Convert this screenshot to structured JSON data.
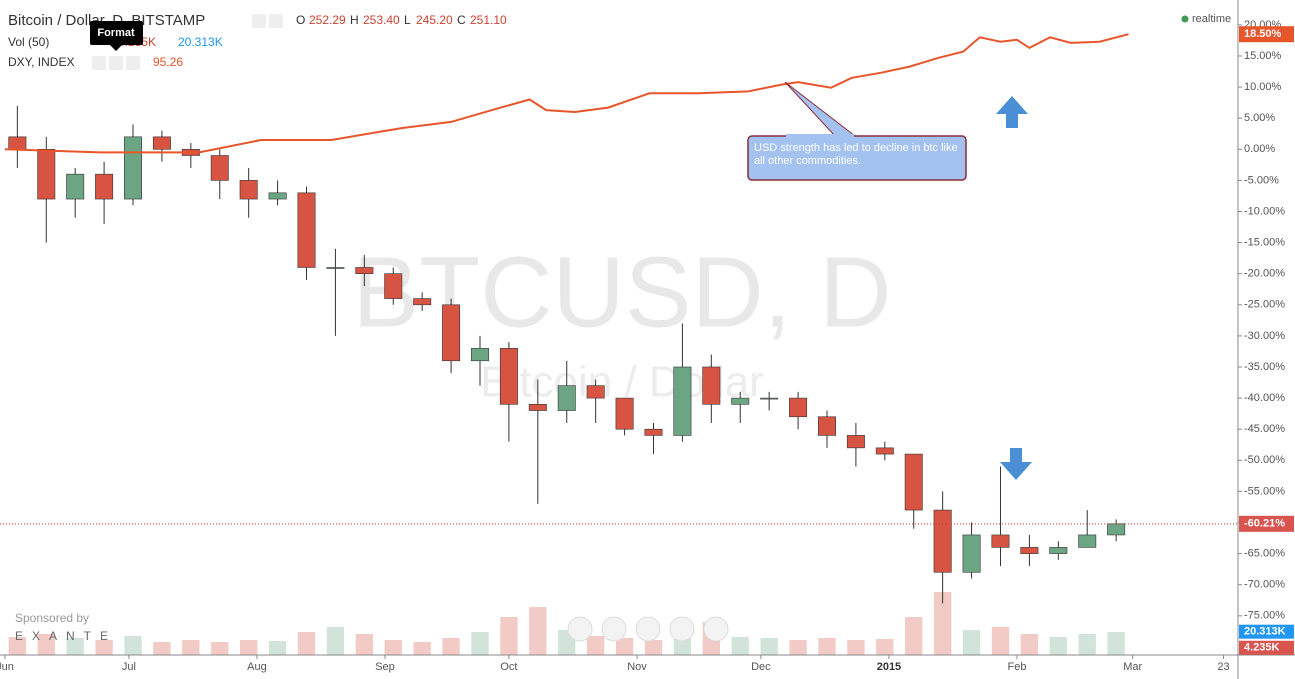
{
  "chart_data": {
    "type": "candlestick",
    "title": "Bitcoin / Dollar, D, BITSTAMP",
    "ohlc": {
      "o_label": "O",
      "o": "252.29",
      "h_label": "H",
      "h": "253.40",
      "l_label": "L",
      "l": "245.20",
      "c_label": "C",
      "c": "251.10"
    },
    "watermark": "BTCUSD, D",
    "watermark_subtitle": "Bitcoin / Dollar",
    "realtime": "realtime",
    "tooltip": "Format",
    "sponsor": "Sponsored by",
    "sponsor_name": "EXANTE",
    "annotation": "USD strength has led to decline in btc like all other commodities.",
    "up_color": "#6ba583",
    "down_color": "#d75442",
    "x": [
      3,
      10,
      17,
      24,
      31,
      38,
      45,
      52,
      59,
      66,
      73,
      80,
      87,
      94,
      101,
      108,
      115,
      122,
      129,
      136,
      143,
      150,
      157,
      164,
      171,
      178,
      185,
      192,
      199,
      206,
      213,
      220,
      227,
      234,
      241,
      248,
      255,
      262,
      269
    ],
    "open": [
      2,
      0,
      -8,
      -4,
      -8,
      2,
      0,
      -1,
      -5,
      -8,
      -7,
      -19,
      -19,
      -20,
      -24,
      -25,
      -34,
      -32,
      -41,
      -42,
      -38,
      -40,
      -45,
      -46,
      -35,
      -41,
      -40,
      -40,
      -43,
      -46,
      -48,
      -49,
      -58,
      -68,
      -62,
      -64,
      -65,
      -64,
      -62
    ],
    "high": [
      7,
      2,
      -3,
      -2,
      4,
      3,
      1,
      0,
      -3,
      -5,
      -6,
      -16,
      -17,
      -19,
      -23,
      -24,
      -30,
      -31,
      -37,
      -34,
      -37,
      -40,
      -44,
      -28,
      -33,
      -39,
      -39,
      -39,
      -42,
      -44,
      -47,
      -49,
      -55,
      -60,
      -51,
      -62,
      -63,
      -58,
      -59.5
    ],
    "low": [
      -3,
      -15,
      -11,
      -12,
      -9,
      -2,
      -3,
      -8,
      -11,
      -9,
      -21,
      -30,
      -22,
      -25,
      -26,
      -36,
      -38,
      -47,
      -57,
      -44,
      -44,
      -46,
      -49,
      -47,
      -44,
      -44,
      -42,
      -45,
      -48,
      -51,
      -50,
      -61,
      -73,
      -69,
      -67,
      -67,
      -66,
      -64,
      -63
    ],
    "close": [
      0,
      -8,
      -4,
      -8,
      2,
      0,
      -1,
      -5,
      -8,
      -7,
      -19,
      -19,
      -20,
      -24,
      -25,
      -34,
      -32,
      -41,
      -42,
      -38,
      -40,
      -45,
      -46,
      -35,
      -41,
      -40,
      -40,
      -43,
      -46,
      -48,
      -49,
      -58,
      -68,
      -62,
      -64,
      -65,
      -64,
      -62,
      -60.21
    ],
    "price_line": {
      "value": -60.21,
      "label": "-60.21%"
    },
    "overlay": {
      "name": "DXY, INDEX",
      "value": "95.26",
      "color": "#e8552b",
      "x": [
        0,
        23,
        47,
        62,
        79,
        96,
        108,
        120,
        127,
        131,
        138,
        146,
        156,
        168,
        180,
        188,
        192,
        200,
        205,
        212,
        219,
        226,
        232,
        236,
        241,
        245,
        248,
        253,
        258,
        265,
        272
      ],
      "values": [
        0,
        -0.5,
        -0.5,
        1.5,
        1.5,
        3.4,
        4.4,
        6.7,
        8,
        6.3,
        6,
        6.7,
        9,
        9,
        9.3,
        10.4,
        10.8,
        9.9,
        11.5,
        12.3,
        13.3,
        14.7,
        15.7,
        18,
        17.3,
        17.6,
        16.3,
        18,
        17.1,
        17.3,
        18.5
      ],
      "last": {
        "value": 18.5,
        "label": "18.50%"
      }
    },
    "volume": {
      "name": "Vol (50)",
      "ylim": [
        -3,
        652
      ],
      "values": [
        15,
        18,
        14,
        12,
        16,
        10,
        12,
        10,
        12,
        11,
        20,
        25,
        18,
        12,
        10,
        14,
        20,
        35,
        45,
        22,
        16,
        14,
        12,
        28,
        30,
        15,
        14,
        12,
        14,
        12,
        13,
        35,
        60,
        22,
        25,
        18,
        15,
        18,
        20
      ],
      "ticks": [
        {
          "value": 20.313,
          "label": "20.313K"
        },
        {
          "value": 4.235,
          "label": "4.235K"
        }
      ]
    },
    "xlim": [
      -1.2,
      298.5
    ],
    "ylim": [
      -81.3,
      24.0
    ],
    "xticks": [
      {
        "value": 0,
        "label": "Jun"
      },
      {
        "value": 30,
        "label": "Jul"
      },
      {
        "value": 61,
        "label": "Aug"
      },
      {
        "value": 92,
        "label": "Sep"
      },
      {
        "value": 122,
        "label": "Oct"
      },
      {
        "value": 153,
        "label": "Nov"
      },
      {
        "value": 183,
        "label": "Dec"
      },
      {
        "value": 214,
        "label": "2015"
      },
      {
        "value": 245,
        "label": "Feb"
      },
      {
        "value": 273,
        "label": "Mar"
      },
      {
        "value": 295,
        "label": "23"
      }
    ],
    "yticks": [
      {
        "value": 20,
        "label": "20.00%"
      },
      {
        "value": 15,
        "label": "15.00%"
      },
      {
        "value": 10,
        "label": "10.00%"
      },
      {
        "value": 5,
        "label": "5.00%"
      },
      {
        "value": 0,
        "label": "0.00%"
      },
      {
        "value": -5,
        "label": "-5.00%"
      },
      {
        "value": -10,
        "label": "-10.00%"
      },
      {
        "value": -15,
        "label": "-15.00%"
      },
      {
        "value": -20,
        "label": "-20.00%"
      },
      {
        "value": -25,
        "label": "-25.00%"
      },
      {
        "value": -30,
        "label": "-30.00%"
      },
      {
        "value": -35,
        "label": "-35.00%"
      },
      {
        "value": -40,
        "label": "-40.00%"
      },
      {
        "value": -45,
        "label": "-45.00%"
      },
      {
        "value": -50,
        "label": "-50.00%"
      },
      {
        "value": -55,
        "label": "-55.00%"
      },
      {
        "value": -60,
        "label": "-60.00%"
      },
      {
        "value": -65,
        "label": "-65.00%"
      },
      {
        "value": -70,
        "label": "-70.00%"
      },
      {
        "value": -75,
        "label": "-75.00%"
      }
    ]
  }
}
